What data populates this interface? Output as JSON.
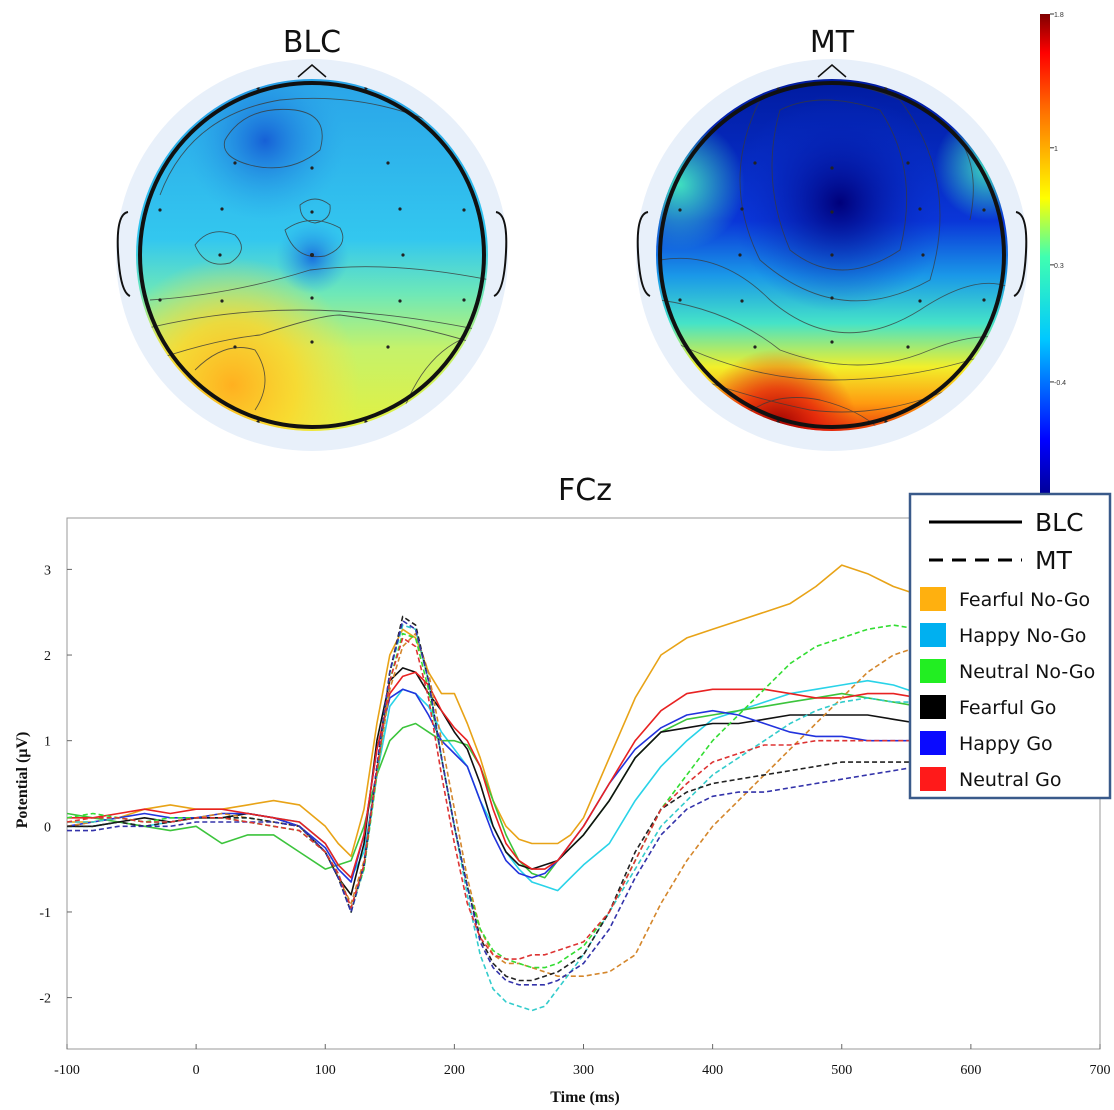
{
  "chart_data": [
    {
      "type": "heatmap",
      "title": "BLC",
      "colorscale": "jet"
    },
    {
      "type": "heatmap",
      "title": "MT",
      "colorscale": "jet"
    },
    {
      "type": "colorbar",
      "range": [
        -1.1,
        1.8
      ],
      "tick_labels": [
        "1.8",
        "1",
        "0.3",
        "-0.4"
      ],
      "tick_values": [
        1.8,
        1.0,
        0.3,
        -0.4
      ]
    },
    {
      "type": "line",
      "title": "FCz",
      "xlabel": "Time (ms)",
      "ylabel": "Potential  (µV)",
      "xlim": [
        -100,
        700
      ],
      "ylim": [
        -2.6,
        3.6
      ],
      "xticks": [
        -100,
        0,
        100,
        200,
        300,
        400,
        500,
        600,
        700
      ],
      "yticks": [
        -2,
        -1,
        0,
        1,
        2,
        3
      ],
      "x": [
        -100,
        -80,
        -60,
        -40,
        -20,
        0,
        20,
        40,
        60,
        80,
        100,
        110,
        120,
        130,
        140,
        150,
        160,
        170,
        180,
        190,
        200,
        210,
        220,
        230,
        240,
        250,
        260,
        270,
        280,
        290,
        300,
        320,
        340,
        360,
        380,
        400,
        420,
        440,
        460,
        480,
        500,
        520,
        540,
        560,
        580,
        600,
        620,
        640,
        660
      ],
      "series": [
        {
          "color": "#e8a317",
          "style": "solid",
          "values": [
            0.05,
            0.05,
            0.1,
            0.2,
            0.25,
            0.2,
            0.2,
            0.25,
            0.3,
            0.25,
            0.0,
            -0.2,
            -0.35,
            0.2,
            1.2,
            2.0,
            2.3,
            2.2,
            1.8,
            1.55,
            1.55,
            1.2,
            0.8,
            0.3,
            0.0,
            -0.15,
            -0.2,
            -0.2,
            -0.2,
            -0.1,
            0.1,
            0.8,
            1.5,
            2.0,
            2.2,
            2.3,
            2.4,
            2.5,
            2.6,
            2.8,
            3.05,
            2.95,
            2.8,
            2.7,
            2.6,
            2.5,
            2.4,
            2.3,
            2.2
          ]
        },
        {
          "color": "#29d3e8",
          "style": "solid",
          "values": [
            0.0,
            0.0,
            0.05,
            0.0,
            0.05,
            0.1,
            0.1,
            0.15,
            0.1,
            0.05,
            -0.2,
            -0.45,
            -0.6,
            -0.3,
            0.6,
            1.4,
            1.6,
            1.55,
            1.4,
            1.1,
            0.9,
            0.7,
            0.3,
            0.0,
            -0.3,
            -0.5,
            -0.65,
            -0.7,
            -0.75,
            -0.6,
            -0.45,
            -0.2,
            0.3,
            0.7,
            1.0,
            1.25,
            1.35,
            1.45,
            1.55,
            1.6,
            1.65,
            1.7,
            1.65,
            1.55,
            1.45,
            1.4,
            1.35,
            1.3,
            1.25
          ]
        },
        {
          "color": "#3cc43c",
          "style": "solid",
          "values": [
            0.15,
            0.1,
            0.05,
            0.0,
            -0.05,
            0.0,
            -0.2,
            -0.1,
            -0.1,
            -0.3,
            -0.5,
            -0.45,
            -0.4,
            0.0,
            0.6,
            1.0,
            1.15,
            1.2,
            1.1,
            1.0,
            1.0,
            0.95,
            0.7,
            0.3,
            -0.1,
            -0.4,
            -0.55,
            -0.6,
            -0.4,
            -0.25,
            -0.1,
            0.3,
            0.8,
            1.1,
            1.25,
            1.3,
            1.35,
            1.4,
            1.45,
            1.5,
            1.55,
            1.5,
            1.45,
            1.4,
            1.35,
            1.35,
            1.3,
            1.3,
            1.3
          ]
        },
        {
          "color": "#111111",
          "style": "solid",
          "values": [
            0.0,
            0.0,
            0.05,
            0.1,
            0.05,
            0.1,
            0.1,
            0.15,
            0.1,
            0.0,
            -0.3,
            -0.6,
            -0.8,
            -0.2,
            1.0,
            1.7,
            1.85,
            1.8,
            1.55,
            1.35,
            1.1,
            0.9,
            0.5,
            0.0,
            -0.3,
            -0.45,
            -0.5,
            -0.45,
            -0.4,
            -0.25,
            -0.1,
            0.3,
            0.8,
            1.1,
            1.15,
            1.2,
            1.2,
            1.25,
            1.3,
            1.3,
            1.3,
            1.3,
            1.25,
            1.2,
            1.2,
            1.2,
            1.2,
            1.2,
            1.2
          ]
        },
        {
          "color": "#2233dd",
          "style": "solid",
          "values": [
            0.0,
            0.05,
            0.1,
            0.15,
            0.1,
            0.1,
            0.15,
            0.15,
            0.1,
            0.0,
            -0.25,
            -0.5,
            -0.65,
            -0.1,
            0.9,
            1.5,
            1.6,
            1.55,
            1.3,
            1.0,
            0.85,
            0.7,
            0.3,
            -0.1,
            -0.4,
            -0.55,
            -0.6,
            -0.55,
            -0.4,
            -0.2,
            0.0,
            0.5,
            0.9,
            1.15,
            1.3,
            1.35,
            1.3,
            1.2,
            1.1,
            1.05,
            1.05,
            1.0,
            1.0,
            1.0,
            1.0,
            1.0,
            1.0,
            1.0,
            1.0
          ]
        },
        {
          "color": "#e82222",
          "style": "solid",
          "values": [
            0.1,
            0.1,
            0.15,
            0.2,
            0.15,
            0.2,
            0.2,
            0.15,
            0.1,
            0.05,
            -0.2,
            -0.45,
            -0.6,
            -0.1,
            0.9,
            1.55,
            1.75,
            1.8,
            1.65,
            1.35,
            1.15,
            1.0,
            0.7,
            0.2,
            -0.2,
            -0.4,
            -0.5,
            -0.5,
            -0.4,
            -0.2,
            0.0,
            0.5,
            1.0,
            1.35,
            1.55,
            1.6,
            1.6,
            1.6,
            1.55,
            1.5,
            1.5,
            1.55,
            1.55,
            1.5,
            1.5,
            1.45,
            1.45,
            1.4,
            1.4
          ]
        },
        {
          "color": "#d4862b",
          "style": "dashed",
          "values": [
            0.0,
            0.05,
            0.1,
            0.05,
            0.05,
            0.1,
            0.15,
            0.1,
            0.05,
            0.0,
            -0.3,
            -0.6,
            -0.9,
            -0.4,
            0.6,
            1.6,
            2.1,
            2.25,
            1.8,
            1.0,
            0.2,
            -0.6,
            -1.2,
            -1.5,
            -1.6,
            -1.6,
            -1.65,
            -1.7,
            -1.75,
            -1.75,
            -1.75,
            -1.7,
            -1.5,
            -0.9,
            -0.4,
            0.0,
            0.3,
            0.6,
            0.9,
            1.2,
            1.5,
            1.8,
            2.0,
            2.1,
            2.1,
            2.05,
            2.0,
            2.0,
            1.95
          ]
        },
        {
          "color": "#33cccc",
          "style": "dashed",
          "values": [
            0.05,
            0.05,
            0.1,
            0.05,
            0.05,
            0.1,
            0.1,
            0.1,
            0.05,
            0.0,
            -0.3,
            -0.6,
            -1.0,
            -0.5,
            0.6,
            1.8,
            2.35,
            2.3,
            1.7,
            0.8,
            0.0,
            -0.8,
            -1.5,
            -1.9,
            -2.05,
            -2.1,
            -2.15,
            -2.1,
            -1.9,
            -1.7,
            -1.5,
            -1.0,
            -0.5,
            0.0,
            0.3,
            0.6,
            0.8,
            1.0,
            1.2,
            1.35,
            1.45,
            1.5,
            1.45,
            1.45,
            1.4,
            1.4,
            1.4,
            1.35,
            1.35
          ]
        },
        {
          "color": "#33dd33",
          "style": "dashed",
          "values": [
            0.1,
            0.15,
            0.1,
            0.05,
            0.1,
            0.1,
            0.1,
            0.05,
            0.0,
            -0.05,
            -0.3,
            -0.55,
            -0.95,
            -0.5,
            0.6,
            1.7,
            2.25,
            2.2,
            1.6,
            0.8,
            0.0,
            -0.7,
            -1.2,
            -1.45,
            -1.55,
            -1.6,
            -1.65,
            -1.65,
            -1.6,
            -1.5,
            -1.4,
            -1.0,
            -0.4,
            0.2,
            0.6,
            1.0,
            1.3,
            1.6,
            1.9,
            2.1,
            2.2,
            2.3,
            2.35,
            2.3,
            2.25,
            2.2,
            2.2,
            2.15,
            2.1
          ]
        },
        {
          "color": "#222222",
          "style": "dashed",
          "values": [
            0.0,
            0.0,
            0.05,
            0.0,
            0.05,
            0.1,
            0.1,
            0.1,
            0.05,
            0.0,
            -0.3,
            -0.6,
            -1.0,
            -0.45,
            0.7,
            1.8,
            2.45,
            2.35,
            1.7,
            0.8,
            0.0,
            -0.7,
            -1.3,
            -1.6,
            -1.75,
            -1.8,
            -1.8,
            -1.75,
            -1.7,
            -1.6,
            -1.5,
            -1.0,
            -0.3,
            0.2,
            0.4,
            0.5,
            0.55,
            0.6,
            0.65,
            0.7,
            0.75,
            0.75,
            0.75,
            0.75,
            0.75,
            0.72,
            0.7,
            0.7,
            0.7
          ]
        },
        {
          "color": "#3333aa",
          "style": "dashed",
          "values": [
            -0.05,
            -0.05,
            0.0,
            0.0,
            0.0,
            0.05,
            0.05,
            0.05,
            0.05,
            0.0,
            -0.3,
            -0.6,
            -1.0,
            -0.45,
            0.7,
            1.8,
            2.4,
            2.3,
            1.7,
            0.8,
            0.0,
            -0.7,
            -1.35,
            -1.65,
            -1.8,
            -1.85,
            -1.85,
            -1.85,
            -1.8,
            -1.7,
            -1.6,
            -1.2,
            -0.6,
            -0.1,
            0.2,
            0.35,
            0.4,
            0.4,
            0.45,
            0.5,
            0.55,
            0.6,
            0.65,
            0.7,
            0.7,
            0.7,
            0.7,
            0.7,
            0.7
          ]
        },
        {
          "color": "#dd3333",
          "style": "dashed",
          "values": [
            0.05,
            0.1,
            0.1,
            0.05,
            0.05,
            0.1,
            0.1,
            0.05,
            0.0,
            -0.05,
            -0.3,
            -0.55,
            -0.95,
            -0.45,
            0.65,
            1.7,
            2.2,
            2.1,
            1.5,
            0.6,
            -0.2,
            -0.9,
            -1.3,
            -1.5,
            -1.55,
            -1.55,
            -1.5,
            -1.5,
            -1.45,
            -1.4,
            -1.35,
            -1.0,
            -0.4,
            0.2,
            0.5,
            0.75,
            0.85,
            0.95,
            0.95,
            1.0,
            1.0,
            1.0,
            1.0,
            1.0,
            1.0,
            1.0,
            1.0,
            1.0,
            1.0
          ]
        }
      ]
    }
  ],
  "legend": {
    "style_items": [
      {
        "label": "BLC",
        "dash": "solid"
      },
      {
        "label": "MT",
        "dash": "dashed"
      }
    ],
    "color_items": [
      {
        "label": "Fearful No-Go",
        "color": "#ffb00f"
      },
      {
        "label": "Happy No-Go",
        "color": "#00b0f0"
      },
      {
        "label": "Neutral No-Go",
        "color": "#22ee22"
      },
      {
        "label": "Fearful Go",
        "color": "#000000"
      },
      {
        "label": "Happy Go",
        "color": "#0a0aff"
      },
      {
        "label": "Neutral Go",
        "color": "#ff1a1a"
      }
    ]
  }
}
